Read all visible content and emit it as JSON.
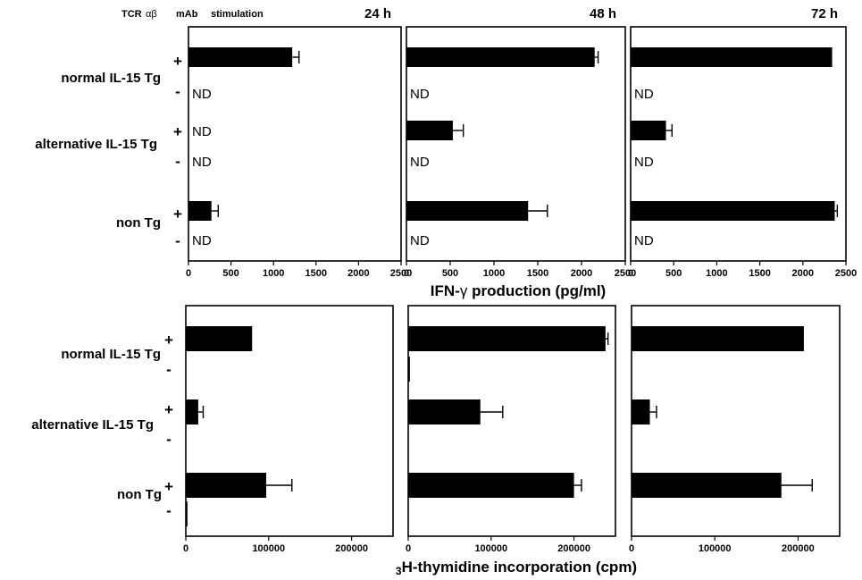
{
  "header": {
    "stim_label": "TCR",
    "ab_label": "αβ",
    "mab_label": "mAb",
    "stimulation_label": "stimulation"
  },
  "groups": [
    "normal IL-15 Tg",
    "alternative IL-15 Tg",
    "non Tg"
  ],
  "stim_levels": [
    "+",
    "-"
  ],
  "nd_label": "ND",
  "chart_data": [
    {
      "type": "bar",
      "orientation": "horizontal",
      "title": "24 h",
      "xlabel": "IFN-γ production (pg/ml)",
      "xlim": [
        0,
        2500
      ],
      "xticks": [
        0,
        500,
        1000,
        1500,
        2000,
        2500
      ],
      "xtick_labels": [
        "0",
        "500",
        "1000",
        "1500",
        "2000",
        "2500"
      ],
      "categories": [
        "normal IL-15 Tg +",
        "normal IL-15 Tg -",
        "alternative IL-15 Tg +",
        "alternative IL-15 Tg -",
        "non Tg +",
        "non Tg -"
      ],
      "values": [
        1220,
        null,
        null,
        null,
        270,
        null
      ],
      "errors": [
        80,
        null,
        null,
        null,
        80,
        null
      ],
      "nd": [
        false,
        true,
        true,
        true,
        false,
        true
      ]
    },
    {
      "type": "bar",
      "orientation": "horizontal",
      "title": "48 h",
      "xlabel": "IFN-γ production (pg/ml)",
      "xlim": [
        0,
        2500
      ],
      "xticks": [
        0,
        500,
        1000,
        1500,
        2000,
        2500
      ],
      "xtick_labels": [
        "0",
        "500",
        "1000",
        "1500",
        "2000",
        "2500"
      ],
      "categories": [
        "normal IL-15 Tg +",
        "normal IL-15 Tg -",
        "alternative IL-15 Tg +",
        "alternative IL-15 Tg -",
        "non Tg +",
        "non Tg -"
      ],
      "values": [
        2150,
        null,
        530,
        null,
        1390,
        null
      ],
      "errors": [
        40,
        null,
        120,
        null,
        220,
        null
      ],
      "nd": [
        false,
        true,
        false,
        true,
        false,
        true
      ]
    },
    {
      "type": "bar",
      "orientation": "horizontal",
      "title": "72 h",
      "xlabel": "IFN-γ production (pg/ml)",
      "xlim": [
        0,
        2500
      ],
      "xticks": [
        0,
        500,
        1000,
        1500,
        2000,
        2500
      ],
      "xtick_labels": [
        "0",
        "500",
        "1000",
        "1500",
        "2000",
        "2500"
      ],
      "categories": [
        "normal IL-15 Tg +",
        "normal IL-15 Tg -",
        "alternative IL-15 Tg +",
        "alternative IL-15 Tg -",
        "non Tg +",
        "non Tg -"
      ],
      "values": [
        2340,
        null,
        410,
        null,
        2370,
        null
      ],
      "errors": [
        0,
        null,
        70,
        null,
        30,
        null
      ],
      "nd": [
        false,
        true,
        false,
        true,
        false,
        true
      ]
    },
    {
      "type": "bar",
      "orientation": "horizontal",
      "title": "",
      "xlabel": "3H-thymidine incorporation (cpm)",
      "xlim": [
        0,
        250000
      ],
      "xticks": [
        0,
        100000,
        200000
      ],
      "xtick_labels": [
        "0",
        "100000",
        "200000"
      ],
      "categories": [
        "normal IL-15 Tg +",
        "normal IL-15 Tg -",
        "alternative IL-15 Tg +",
        "alternative IL-15 Tg -",
        "non Tg +",
        "non Tg -"
      ],
      "values": [
        80000,
        0,
        15000,
        0,
        97000,
        2000
      ],
      "errors": [
        0,
        0,
        6000,
        0,
        31000,
        0
      ]
    },
    {
      "type": "bar",
      "orientation": "horizontal",
      "title": "",
      "xlabel": "3H-thymidine incorporation (cpm)",
      "xlim": [
        0,
        250000
      ],
      "xticks": [
        0,
        100000,
        200000
      ],
      "xtick_labels": [
        "0",
        "100000",
        "200000"
      ],
      "categories": [
        "normal IL-15 Tg +",
        "normal IL-15 Tg -",
        "alternative IL-15 Tg +",
        "alternative IL-15 Tg -",
        "non Tg +",
        "non Tg -"
      ],
      "values": [
        238000,
        2000,
        87000,
        0,
        200000,
        0
      ],
      "errors": [
        3000,
        0,
        27000,
        0,
        9000,
        0
      ]
    },
    {
      "type": "bar",
      "orientation": "horizontal",
      "title": "",
      "xlabel": "3H-thymidine incorporation (cpm)",
      "xlim": [
        0,
        250000
      ],
      "xticks": [
        0,
        100000,
        200000
      ],
      "xtick_labels": [
        "0",
        "100000",
        "200000"
      ],
      "categories": [
        "normal IL-15 Tg +",
        "normal IL-15 Tg -",
        "alternative IL-15 Tg +",
        "alternative IL-15 Tg -",
        "non Tg +",
        "non Tg -"
      ],
      "values": [
        207000,
        0,
        22000,
        0,
        180000,
        0
      ],
      "errors": [
        0,
        0,
        8000,
        0,
        37000,
        0
      ]
    }
  ],
  "xlabels": {
    "ifn_prefix": "IFN-",
    "ifn_gamma": "γ",
    "ifn_suffix": " production (pg/ml)",
    "thy_super": "3",
    "thy_suffix": "H-thymidine incorporation (cpm)"
  },
  "colors": {
    "bar": "#000000",
    "axis": "#000000",
    "background": "#ffffff"
  }
}
